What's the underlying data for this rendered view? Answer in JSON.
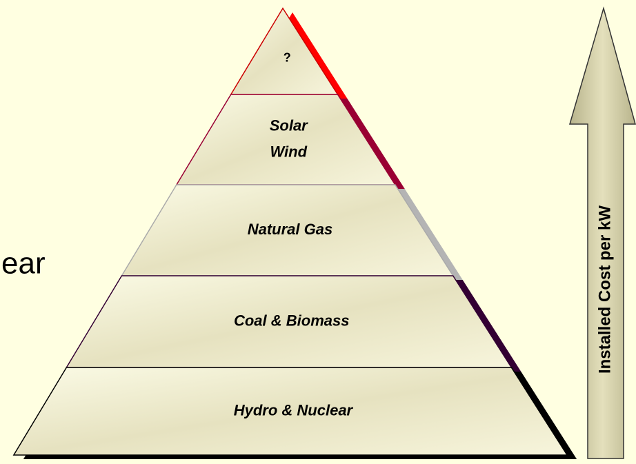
{
  "side_text": "ear",
  "pyramid": {
    "layers": [
      {
        "lines": [
          "?"
        ]
      },
      {
        "lines": [
          "Solar",
          "Wind"
        ]
      },
      {
        "lines": [
          "Natural Gas"
        ]
      },
      {
        "lines": [
          "Coal & Biomass"
        ]
      },
      {
        "lines": [
          "Hydro & Nuclear"
        ]
      }
    ]
  },
  "arrow": {
    "label": "Installed Cost per kW"
  }
}
